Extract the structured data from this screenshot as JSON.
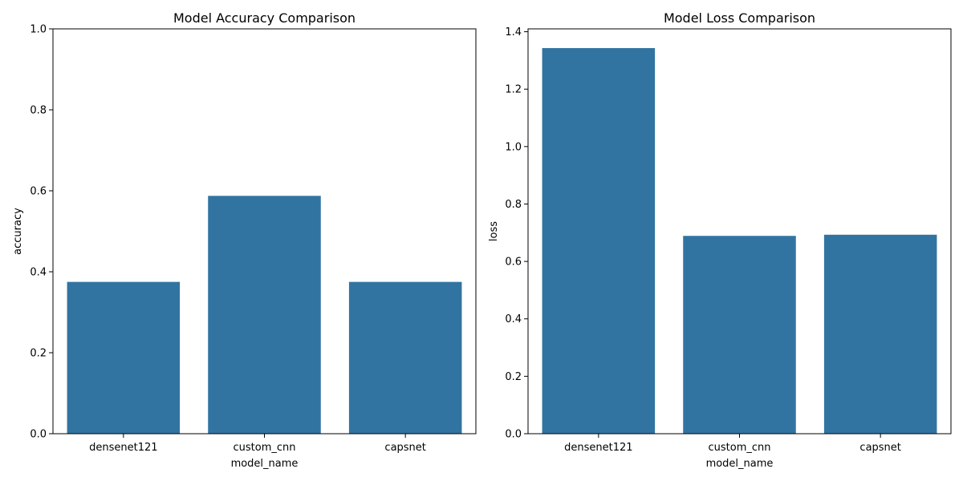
{
  "chart_data": [
    {
      "type": "bar",
      "title": "Model Accuracy Comparison",
      "xlabel": "model_name",
      "ylabel": "accuracy",
      "categories": [
        "densenet121",
        "custom_cnn",
        "capsnet"
      ],
      "values": [
        0.375,
        0.5875,
        0.375
      ],
      "ylim": [
        0,
        1.0
      ],
      "yticks": [
        "0.0",
        "0.2",
        "0.4",
        "0.6",
        "0.8",
        "1.0"
      ],
      "grid": false,
      "color": "#3274a1"
    },
    {
      "type": "bar",
      "title": "Model Loss Comparison",
      "xlabel": "model_name",
      "ylabel": "loss",
      "categories": [
        "densenet121",
        "custom_cnn",
        "capsnet"
      ],
      "values": [
        1.343,
        0.689,
        0.693
      ],
      "ylim": [
        0,
        1.41
      ],
      "yticks": [
        "0.0",
        "0.2",
        "0.4",
        "0.6",
        "0.8",
        "1.0",
        "1.2",
        "1.4"
      ],
      "grid": false,
      "color": "#3274a1"
    }
  ]
}
